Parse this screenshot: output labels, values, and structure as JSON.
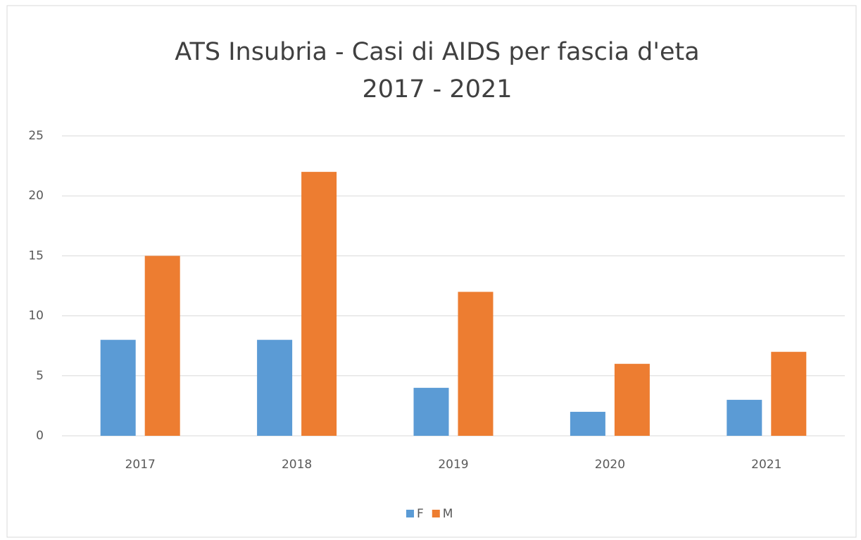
{
  "chart_data": {
    "type": "bar",
    "title": "ATS Insubria - Casi di AIDS per fascia d'eta",
    "subtitle": "2017 - 2021",
    "categories": [
      "2017",
      "2018",
      "2019",
      "2020",
      "2021"
    ],
    "series": [
      {
        "name": "F",
        "color": "#5b9bd5",
        "values": [
          8,
          8,
          4,
          2,
          3
        ]
      },
      {
        "name": "M",
        "color": "#ed7d31",
        "values": [
          15,
          22,
          12,
          6,
          7
        ]
      }
    ],
    "ylim": [
      0,
      25
    ],
    "yticks": [
      0,
      5,
      10,
      15,
      20,
      25
    ],
    "grid": true,
    "legend": "bottom"
  }
}
